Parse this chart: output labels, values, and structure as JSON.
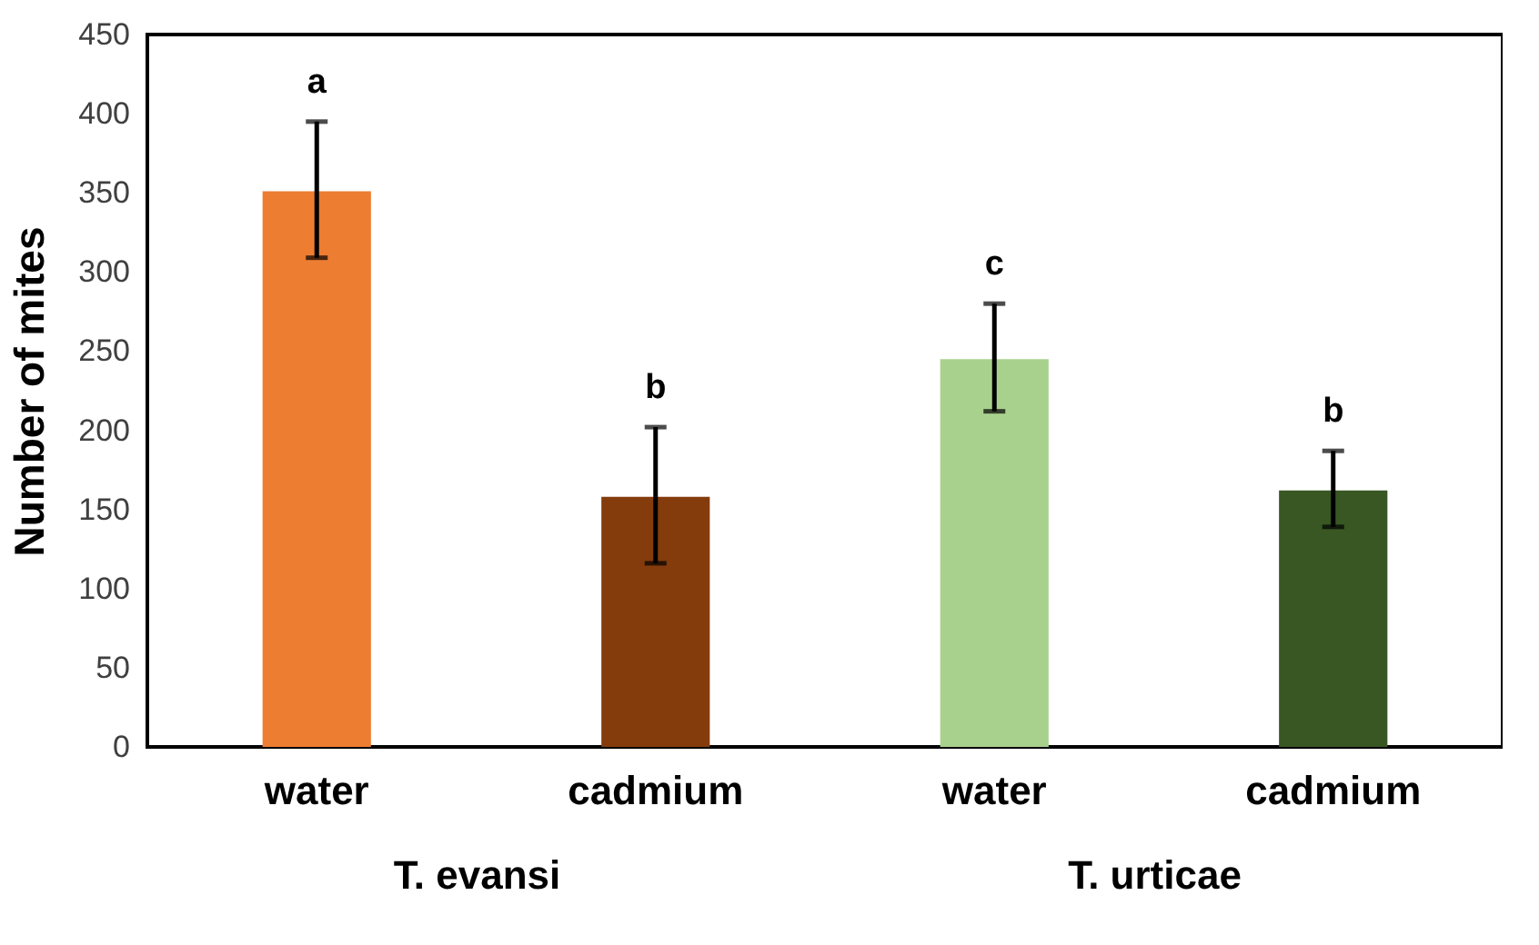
{
  "chart_data": {
    "type": "bar",
    "ylabel": "Number of mites",
    "categories": [
      "water",
      "cadmium",
      "water",
      "cadmium"
    ],
    "values": [
      351,
      158,
      245,
      162
    ],
    "colors": [
      "#ed7d31",
      "#843c0c",
      "#a9d18e",
      "#385723"
    ],
    "errors": [
      [
        309,
        395
      ],
      [
        116,
        202
      ],
      [
        212,
        280
      ],
      [
        139,
        187
      ]
    ],
    "value_labels": [
      "a",
      "b",
      "c",
      "b"
    ],
    "annotations": [
      "T. evansi",
      "T. urticae"
    ],
    "ylim": [
      0,
      450
    ],
    "yticks": [
      0,
      50,
      100,
      150,
      200,
      250,
      300,
      350,
      400,
      450
    ],
    "grid": false
  }
}
